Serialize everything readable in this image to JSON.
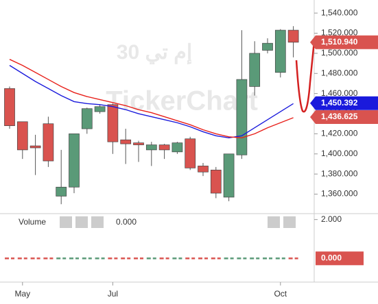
{
  "chart_data": {
    "type": "candlestick",
    "watermark": [
      "إم تي 30",
      "TickerChart"
    ],
    "categories": [
      null,
      "May",
      null,
      null,
      null,
      null,
      null,
      null,
      "Jul",
      null,
      null,
      null,
      null,
      null,
      null,
      null,
      null,
      null,
      null,
      null,
      null,
      "Oct",
      null
    ],
    "open": [
      1465,
      1432,
      1408,
      1430,
      1358,
      1367,
      1425,
      1442,
      1449,
      1414,
      1411,
      1404,
      1409,
      1402,
      1415,
      1388,
      1384,
      1357,
      1399,
      1467,
      1503,
      1481,
      1523
    ],
    "high": [
      1467,
      1432,
      1419,
      1437,
      1404,
      1420,
      1446,
      1449,
      1450,
      1425,
      1413,
      1412,
      1410,
      1412,
      1417,
      1391,
      1387,
      1400,
      1523,
      1512,
      1515,
      1524,
      1527
    ],
    "low": [
      1425,
      1395,
      1379,
      1387,
      1350,
      1361,
      1420,
      1440,
      1400,
      1390,
      1392,
      1388,
      1395,
      1400,
      1384,
      1378,
      1356,
      1353,
      1395,
      1458,
      1500,
      1476,
      1496
    ],
    "close": [
      1428,
      1404,
      1406,
      1393,
      1367,
      1420,
      1445,
      1447,
      1412,
      1410,
      1409,
      1409,
      1404,
      1411,
      1386,
      1382,
      1361,
      1400,
      1474,
      1500,
      1510,
      1523,
      1511
    ],
    "up_color": "#5a9a78",
    "down_color": "#d9534f",
    "series": [
      {
        "color": "#1a1adc",
        "values": [
          1488,
          1480,
          1472,
          1465,
          1458,
          1452,
          1450,
          1449,
          1447,
          1444,
          1440,
          1437,
          1434,
          1431,
          1427,
          1422,
          1418,
          1416,
          1418,
          1426,
          1434,
          1442,
          1450
        ]
      },
      {
        "color": "#e8201a",
        "values": [
          1494,
          1488,
          1481,
          1474,
          1467,
          1461,
          1457,
          1454,
          1451,
          1448,
          1444,
          1441,
          1437,
          1433,
          1429,
          1424,
          1420,
          1417,
          1416,
          1420,
          1426,
          1431,
          1436
        ]
      }
    ],
    "ylim": [
      1342,
      1553
    ],
    "yticks": [
      {
        "value": 1360,
        "label": "1,360.000"
      },
      {
        "value": 1380,
        "label": "1,380.000"
      },
      {
        "value": 1400,
        "label": "1,400.000"
      },
      {
        "value": 1420,
        "label": "1,420.000"
      },
      {
        "value": 1440,
        "label": "1,440.000"
      },
      {
        "value": 1460,
        "label": "1,460.000"
      },
      {
        "value": 1480,
        "label": "1,480.000"
      },
      {
        "value": 1500,
        "label": "1,500.000"
      },
      {
        "value": 1520,
        "label": "1,520.000"
      },
      {
        "value": 1540,
        "label": "1,540.000"
      }
    ],
    "last_labels": [
      {
        "value": 1510.94,
        "label": "1,510.940",
        "color": "#d9534f"
      },
      {
        "value": 1450.392,
        "label": "1,450.392",
        "color": "#1a1adc"
      },
      {
        "value": 1436.625,
        "label": "1,436.625",
        "color": "#d9534f"
      }
    ],
    "volume": {
      "title": "Volume",
      "value": {
        "value": 0,
        "label": "0.000"
      },
      "y2lim": [
        -0.8,
        2.2
      ],
      "y2ticks": [
        {
          "value": 2,
          "label": "2.000"
        }
      ],
      "last_label": {
        "value": 0,
        "label": "0.000"
      }
    }
  }
}
